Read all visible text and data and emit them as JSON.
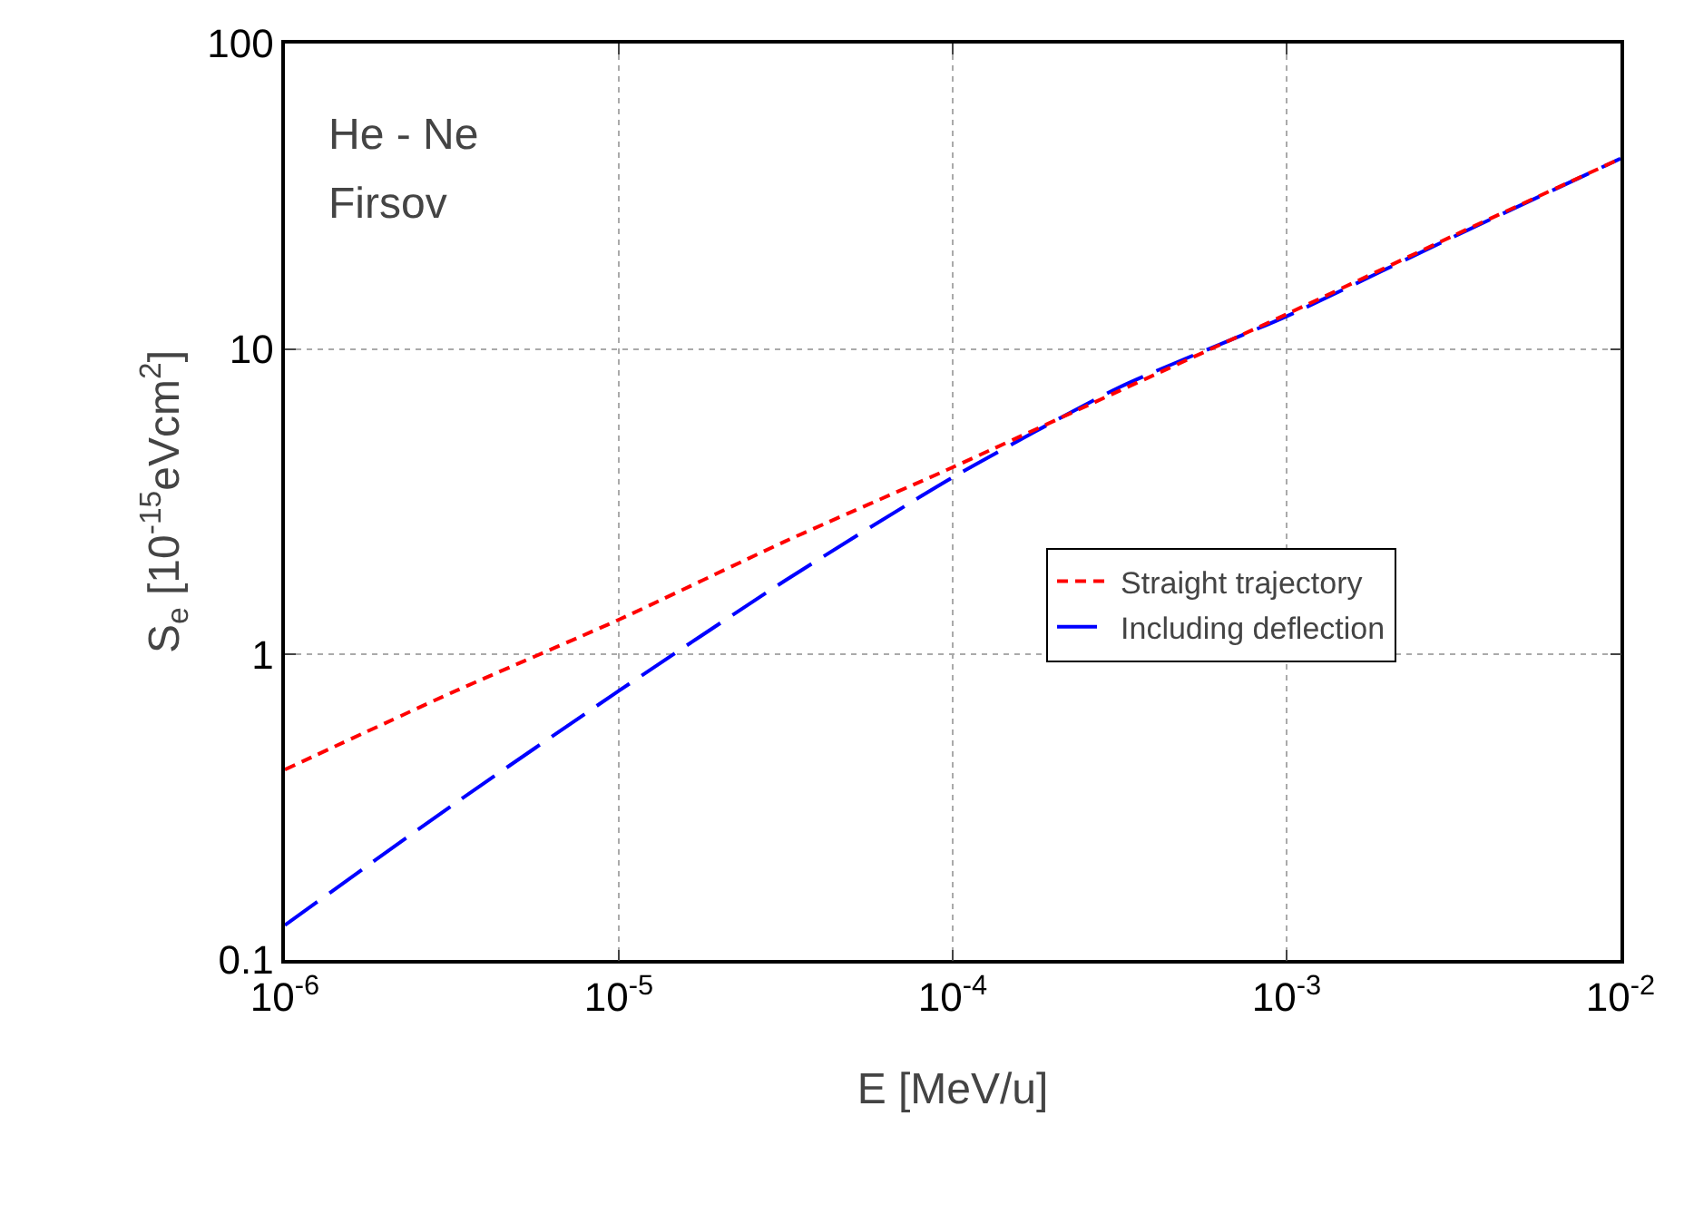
{
  "chart_data": {
    "type": "line",
    "xlabel": "E [MeV/u]",
    "ylabel": "S$_{e}$ [10$^{-15}$eVcm$^{2}$]",
    "annotations": [
      "He - Ne",
      "Firsov"
    ],
    "x": [
      1e-06,
      3.16e-06,
      1e-05,
      3.16e-05,
      0.0001,
      0.000316,
      0.001,
      0.00316,
      0.01
    ],
    "series": [
      {
        "name": "Straight trajectory",
        "color": "#ff0000",
        "line_style": "dashed",
        "values": [
          0.42,
          0.75,
          1.3,
          2.35,
          4.1,
          7.3,
          13,
          23.5,
          42
        ]
      },
      {
        "name": "Including deflection",
        "color": "#0000ff",
        "line_style": "longdash",
        "values": [
          0.13,
          0.32,
          0.76,
          1.75,
          3.8,
          7.5,
          12.8,
          23.3,
          42
        ]
      }
    ],
    "log": "xy",
    "xlim": [
      1e-06,
      0.01
    ],
    "ylim": [
      0.1,
      100
    ],
    "xticks": [
      {
        "value": 1e-06,
        "label": "10$^{-6}$"
      },
      {
        "value": 1e-05,
        "label": "10$^{-5}$"
      },
      {
        "value": 0.0001,
        "label": "10$^{-4}$"
      },
      {
        "value": 0.001,
        "label": "10$^{-3}$"
      },
      {
        "value": 0.01,
        "label": "10$^{-2}$"
      }
    ],
    "yticks": [
      0.1,
      1,
      10,
      100
    ],
    "grid": true,
    "legend": "right",
    "marker": "none"
  }
}
